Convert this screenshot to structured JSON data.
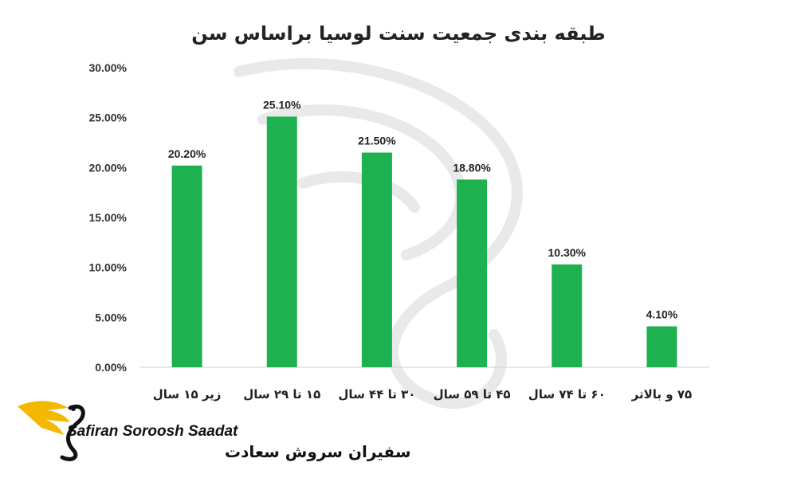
{
  "chart_data": {
    "type": "bar",
    "title": "طبقه بندی جمعیت سنت لوسیا براساس سن",
    "categories": [
      "زیر ۱۵ سال",
      "۱۵ تا ۲۹ سال",
      "۳۰ تا ۴۴ سال",
      "۴۵ تا ۵۹ سال",
      "۶۰ تا ۷۴ سال",
      "۷۵ و بالاتر"
    ],
    "values": [
      20.2,
      25.1,
      21.5,
      18.8,
      10.3,
      4.1
    ],
    "data_labels": [
      "20.20%",
      "25.10%",
      "21.50%",
      "18.80%",
      "10.30%",
      "4.10%"
    ],
    "ylim": [
      0,
      30
    ],
    "yticks": [
      0,
      5,
      10,
      15,
      20,
      25,
      30
    ],
    "ytick_labels": [
      "0.00%",
      "5.00%",
      "10.00%",
      "15.00%",
      "20.00%",
      "25.00%",
      "30.00%"
    ],
    "xlabel": "",
    "ylabel": "",
    "grid": false,
    "bar_color": "#1db14f"
  },
  "logo": {
    "text_en": "Safiran Soroosh Saadat",
    "text_fa": "سفیران سروش سعادت",
    "icon": "swan-logo-icon",
    "accent_color": "#f5b800"
  },
  "watermark": {
    "icon": "swan-watermark-icon"
  }
}
